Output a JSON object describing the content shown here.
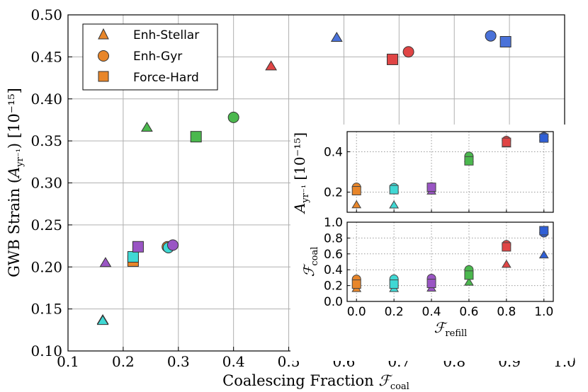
{
  "chart_data": [
    {
      "type": "scatter",
      "xlabel_main": "Coalescing Fraction ",
      "xlabel_math": "ℱ",
      "xlabel_sub": "coal",
      "ylabel_main": "GWB Strain (",
      "ylabel_math": "A",
      "ylabel_sub": "yr⁻¹",
      "ylabel_unit": ") [10⁻¹⁵]",
      "xlim": [
        0.1,
        1.0
      ],
      "ylim": [
        0.1,
        0.5
      ],
      "xticks": [
        "0.1",
        "0.2",
        "0.3",
        "0.4",
        "0.5",
        "0.6",
        "0.7",
        "0.8",
        "0.9",
        "1.0"
      ],
      "yticks": [
        "0.10",
        "0.15",
        "0.20",
        "0.25",
        "0.30",
        "0.35",
        "0.40",
        "0.45",
        "0.50"
      ],
      "grid": true,
      "legend_position": "top-left",
      "legend": [
        "Enh-Stellar",
        "Enh-Gyr",
        "Force-Hard"
      ],
      "series": [
        {
          "name": "Enh-Stellar",
          "marker": "triangle",
          "points": [
            {
              "x": 0.163,
              "y": 0.137,
              "color": "#e8862a"
            },
            {
              "x": 0.163,
              "y": 0.136,
              "color": "#40d8d4"
            },
            {
              "x": 0.168,
              "y": 0.205,
              "color": "#9a55c4"
            },
            {
              "x": 0.243,
              "y": 0.366,
              "color": "#4bb84e"
            },
            {
              "x": 0.468,
              "y": 0.439,
              "color": "#e04545"
            },
            {
              "x": 0.587,
              "y": 0.473,
              "color": "#4a72d9"
            }
          ]
        },
        {
          "name": "Enh-Gyr",
          "marker": "circle",
          "points": [
            {
              "x": 0.28,
              "y": 0.224,
              "color": "#e8862a"
            },
            {
              "x": 0.282,
              "y": 0.223,
              "color": "#40d8d4"
            },
            {
              "x": 0.29,
              "y": 0.226,
              "color": "#9a55c4"
            },
            {
              "x": 0.4,
              "y": 0.378,
              "color": "#4bb84e"
            },
            {
              "x": 0.717,
              "y": 0.456,
              "color": "#e04545"
            },
            {
              "x": 0.866,
              "y": 0.475,
              "color": "#4a72d9"
            }
          ]
        },
        {
          "name": "Force-Hard",
          "marker": "square",
          "points": [
            {
              "x": 0.218,
              "y": 0.207,
              "color": "#e8862a"
            },
            {
              "x": 0.218,
              "y": 0.212,
              "color": "#40d8d4"
            },
            {
              "x": 0.227,
              "y": 0.224,
              "color": "#9a55c4"
            },
            {
              "x": 0.332,
              "y": 0.355,
              "color": "#4bb84e"
            },
            {
              "x": 0.688,
              "y": 0.447,
              "color": "#e04545"
            },
            {
              "x": 0.893,
              "y": 0.468,
              "color": "#4a72d9"
            }
          ]
        }
      ]
    },
    {
      "type": "scatter",
      "ylabel_math": "A",
      "ylabel_sub": "yr⁻¹",
      "ylabel_unit": " [10⁻¹⁵]",
      "xlim": [
        -0.05,
        1.05
      ],
      "ylim": [
        0.1,
        0.5
      ],
      "yticks": [
        "0.2",
        "0.4"
      ],
      "ytick_values": [
        0.2,
        0.4
      ],
      "grid": true,
      "series": [
        {
          "name": "Enh-Stellar",
          "marker": "triangle",
          "x": [
            0.0,
            0.2,
            0.4,
            0.6,
            0.8,
            1.0
          ],
          "y": [
            0.137,
            0.136,
            0.205,
            0.366,
            0.439,
            0.473
          ]
        },
        {
          "name": "Enh-Gyr",
          "marker": "circle",
          "x": [
            0.0,
            0.2,
            0.4,
            0.6,
            0.8,
            1.0
          ],
          "y": [
            0.224,
            0.223,
            0.226,
            0.378,
            0.456,
            0.475
          ]
        },
        {
          "name": "Force-Hard",
          "marker": "square",
          "x": [
            0.0,
            0.2,
            0.4,
            0.6,
            0.8,
            1.0
          ],
          "y": [
            0.207,
            0.212,
            0.224,
            0.355,
            0.447,
            0.468
          ]
        }
      ],
      "point_colors": [
        "#e8862a",
        "#40d8d4",
        "#9a55c4",
        "#4bb84e",
        "#e04545",
        "#2f5fd6"
      ]
    },
    {
      "type": "scatter",
      "xlabel_math": "ℱ",
      "xlabel_sub": "refill",
      "ylabel_math": "ℱ",
      "ylabel_sub": "coal",
      "xlim": [
        -0.05,
        1.05
      ],
      "ylim": [
        0.0,
        1.0
      ],
      "xticks": [
        "0.0",
        "0.2",
        "0.4",
        "0.6",
        "0.8",
        "1.0"
      ],
      "xtick_values": [
        0.0,
        0.2,
        0.4,
        0.6,
        0.8,
        1.0
      ],
      "yticks": [
        "0.0",
        "0.2",
        "0.4",
        "0.6",
        "0.8",
        "1.0"
      ],
      "ytick_values": [
        0.0,
        0.2,
        0.4,
        0.6,
        0.8,
        1.0
      ],
      "grid": true,
      "series": [
        {
          "name": "Enh-Stellar",
          "marker": "triangle",
          "x": [
            0.0,
            0.2,
            0.4,
            0.6,
            0.8,
            1.0
          ],
          "y": [
            0.163,
            0.163,
            0.168,
            0.243,
            0.468,
            0.587
          ]
        },
        {
          "name": "Enh-Gyr",
          "marker": "circle",
          "x": [
            0.0,
            0.2,
            0.4,
            0.6,
            0.8,
            1.0
          ],
          "y": [
            0.28,
            0.282,
            0.29,
            0.4,
            0.717,
            0.866
          ]
        },
        {
          "name": "Force-Hard",
          "marker": "square",
          "x": [
            0.0,
            0.2,
            0.4,
            0.6,
            0.8,
            1.0
          ],
          "y": [
            0.218,
            0.218,
            0.227,
            0.332,
            0.688,
            0.893
          ]
        }
      ],
      "point_colors": [
        "#e8862a",
        "#40d8d4",
        "#9a55c4",
        "#4bb84e",
        "#e04545",
        "#2f5fd6"
      ]
    }
  ]
}
